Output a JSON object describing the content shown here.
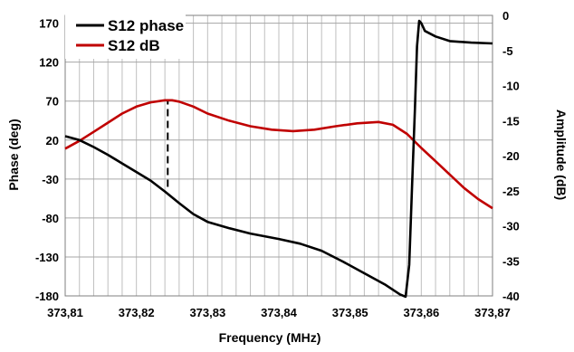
{
  "chart_data": {
    "type": "line",
    "xlabel": "Frequency (MHz)",
    "ylabel": "Phase (deg)",
    "y2label": "Amplitude (dB)",
    "xlim": [
      373.81,
      373.87
    ],
    "ylim": [
      -180,
      180
    ],
    "y2lim": [
      -40,
      0
    ],
    "x_ticks": [
      "373,81",
      "373,82",
      "373,83",
      "373,84",
      "373,85",
      "373,86",
      "373,87"
    ],
    "y_ticks": [
      "170",
      "120",
      "70",
      "20",
      "-30",
      "-80",
      "-130",
      "-180"
    ],
    "y2_ticks": [
      "0",
      "-5",
      "-10",
      "-15",
      "-20",
      "-25",
      "-30",
      "-35",
      "-40"
    ],
    "grid": true,
    "legend": "top-left",
    "series": [
      {
        "name": "S12 phase",
        "axis": "left",
        "color": "#000000",
        "x": [
          373.81,
          373.812,
          373.814,
          373.816,
          373.818,
          373.82,
          373.822,
          373.824,
          373.826,
          373.828,
          373.83,
          373.833,
          373.836,
          373.84,
          373.843,
          373.846,
          373.849,
          373.852,
          373.855,
          373.857,
          373.8578,
          373.8583,
          373.8587,
          373.8591,
          373.8594,
          373.8597,
          373.86,
          373.8605,
          373.862,
          373.864,
          373.867,
          373.87
        ],
        "values": [
          25,
          20,
          11,
          1,
          -10,
          -21,
          -32,
          -46,
          -61,
          -75,
          -85,
          -93,
          -100,
          -107,
          -113,
          -122,
          -136,
          -151,
          -166,
          -178,
          -181,
          -140,
          -40,
          60,
          140,
          173,
          170,
          160,
          153,
          147,
          145,
          144
        ]
      },
      {
        "name": "S12 dB",
        "axis": "right",
        "color": "#C00000",
        "x": [
          373.81,
          373.812,
          373.814,
          373.816,
          373.818,
          373.82,
          373.822,
          373.824,
          373.825,
          373.826,
          373.828,
          373.83,
          373.833,
          373.836,
          373.839,
          373.842,
          373.845,
          373.848,
          373.851,
          373.854,
          373.856,
          373.858,
          373.86,
          373.862,
          373.864,
          373.866,
          373.868,
          373.87
        ],
        "values": [
          -19.0,
          -17.9,
          -16.6,
          -15.3,
          -14.0,
          -13.0,
          -12.4,
          -12.1,
          -12.1,
          -12.3,
          -13.0,
          -14.0,
          -15.0,
          -15.8,
          -16.3,
          -16.5,
          -16.3,
          -15.8,
          -15.4,
          -15.2,
          -15.6,
          -16.9,
          -18.9,
          -20.8,
          -22.7,
          -24.6,
          -26.2,
          -27.5
        ]
      }
    ],
    "annotations": [
      {
        "type": "dashed-line",
        "x": 373.8244,
        "y_from_phase": -40,
        "y_to_phase": 71
      }
    ]
  }
}
